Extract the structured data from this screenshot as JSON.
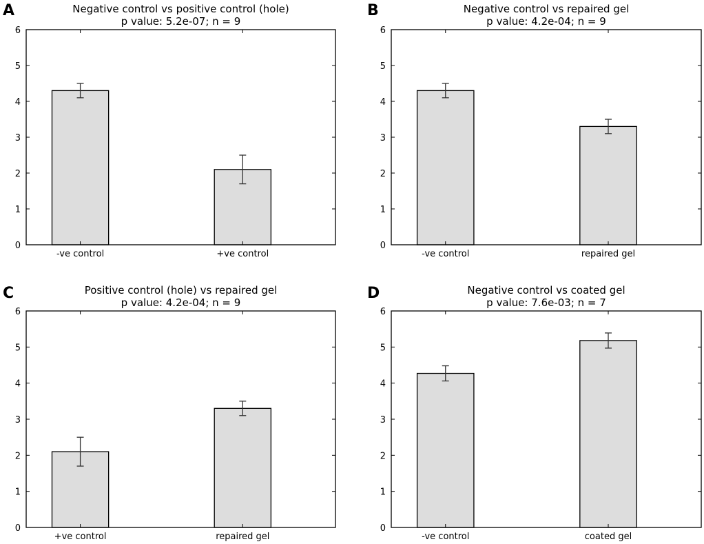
{
  "chart_data": [
    {
      "type": "bar",
      "panel": "A",
      "title": "Negative control vs positive control (hole)",
      "subtitle": "p value: 5.2e-07; n =  9",
      "categories": [
        "-ve control",
        "+ve control"
      ],
      "values": [
        4.3,
        2.1
      ],
      "errors": [
        0.2,
        0.4
      ],
      "ylim": [
        0,
        6
      ],
      "yticks": [
        "0",
        "1",
        "2",
        "3",
        "4",
        "5",
        "6"
      ],
      "grid": false
    },
    {
      "type": "bar",
      "panel": "B",
      "title": "Negative control vs repaired gel",
      "subtitle": "p value: 4.2e-04; n =  9",
      "categories": [
        "-ve control",
        "repaired gel"
      ],
      "values": [
        4.3,
        3.3
      ],
      "errors": [
        0.2,
        0.2
      ],
      "ylim": [
        0,
        6
      ],
      "yticks": [
        "0",
        "1",
        "2",
        "3",
        "4",
        "5",
        "6"
      ],
      "grid": false
    },
    {
      "type": "bar",
      "panel": "C",
      "title": "Positive control (hole) vs repaired gel",
      "subtitle": "p value: 4.2e-04; n =  9",
      "categories": [
        "+ve control",
        "repaired gel"
      ],
      "values": [
        2.1,
        3.3
      ],
      "errors": [
        0.4,
        0.2
      ],
      "ylim": [
        0,
        6
      ],
      "yticks": [
        "0",
        "1",
        "2",
        "3",
        "4",
        "5",
        "6"
      ],
      "grid": false
    },
    {
      "type": "bar",
      "panel": "D",
      "title": "Negative control vs coated gel",
      "subtitle": "p value: 7.6e-03; n =  7",
      "categories": [
        "-ve control",
        "coated gel"
      ],
      "values": [
        4.27,
        5.18
      ],
      "errors": [
        0.21,
        0.21
      ],
      "ylim": [
        0,
        6
      ],
      "yticks": [
        "0",
        "1",
        "2",
        "3",
        "4",
        "5",
        "6"
      ],
      "grid": false
    }
  ],
  "colors": {
    "bar_fill": "#dddddd",
    "bar_edge": "#000000",
    "error_bar": "#333333"
  }
}
